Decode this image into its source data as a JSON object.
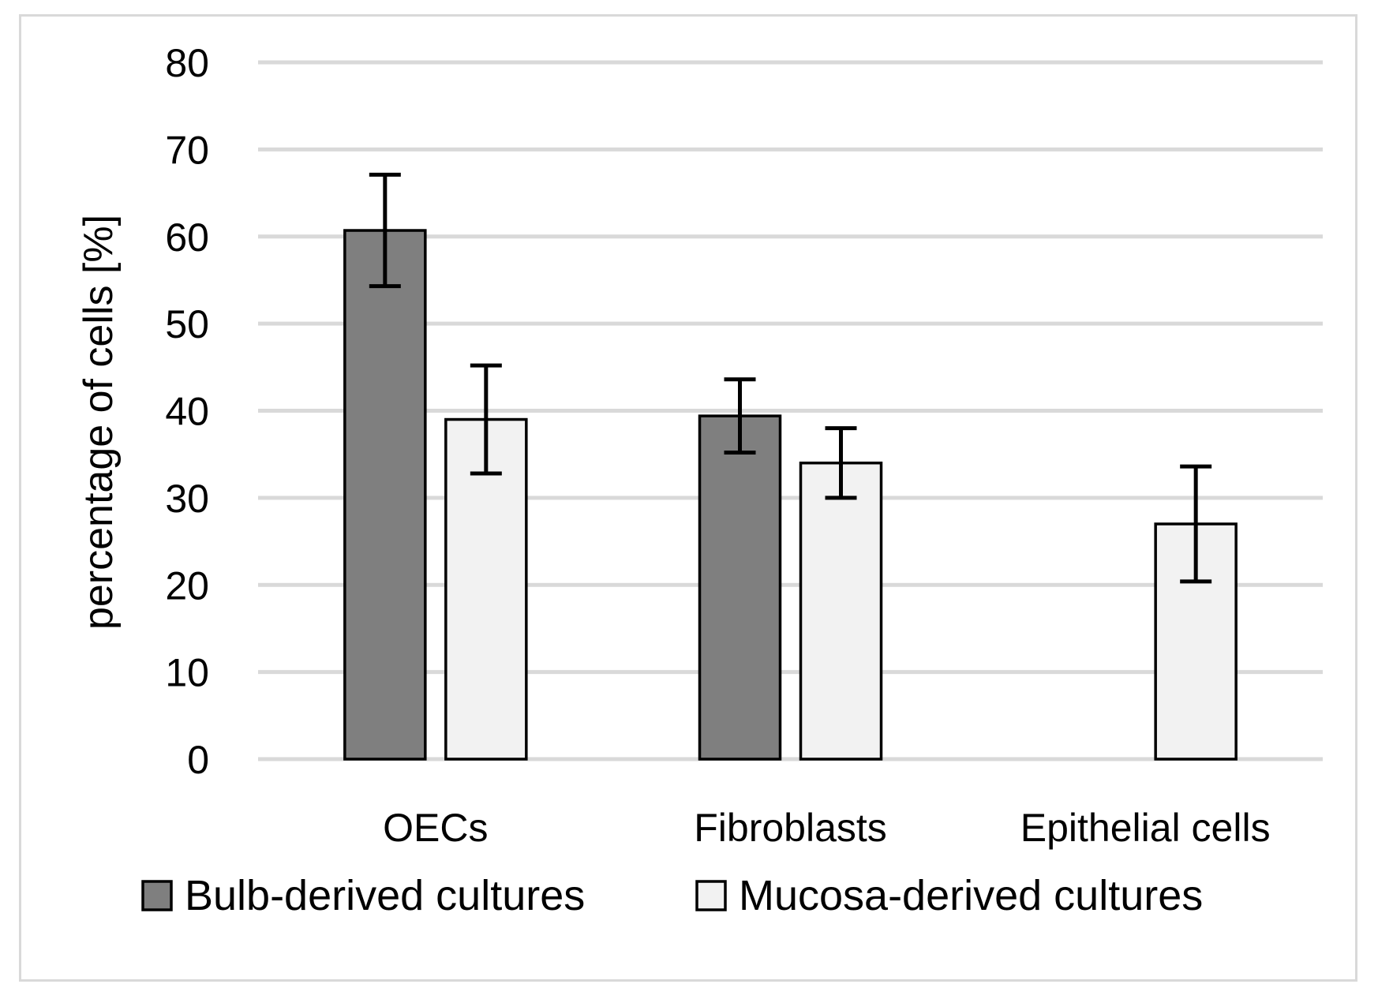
{
  "chart_data": {
    "type": "bar",
    "title": "",
    "xlabel": "",
    "ylabel": "percentage of cells [%]",
    "ylim": [
      0,
      80
    ],
    "yticks": [
      0,
      10,
      20,
      30,
      40,
      50,
      60,
      70,
      80
    ],
    "grid": true,
    "legend_position": "bottom",
    "categories": [
      "OECs",
      "Fibroblasts",
      "Epithelial cells"
    ],
    "series": [
      {
        "name": "Bulb-derived cultures",
        "color": "#7f7f7f",
        "values": [
          60.7,
          39.4,
          null
        ],
        "error": [
          6.4,
          4.2,
          null
        ]
      },
      {
        "name": "Mucosa-derived cultures",
        "color": "#f2f2f2",
        "values": [
          39.0,
          34.0,
          27.0
        ],
        "error": [
          6.2,
          4.0,
          6.6
        ]
      }
    ]
  }
}
